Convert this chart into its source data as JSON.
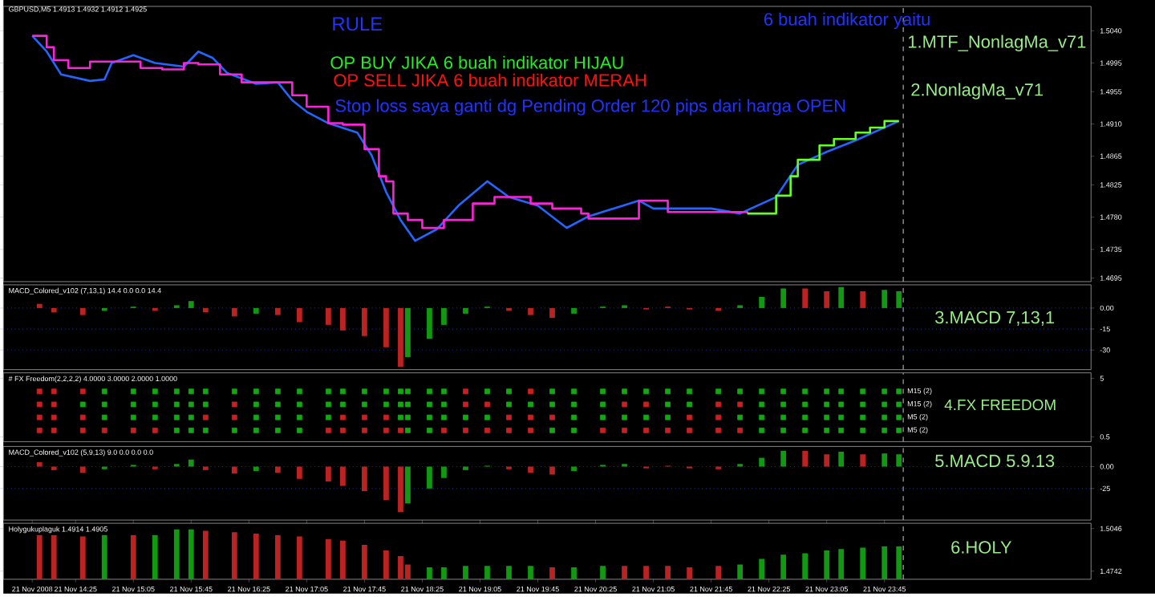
{
  "chart_data": [
    {
      "type": "line",
      "title": "GBPUSD,M5 1.4913 1.4932 1.4912 1.4925",
      "annotations": [
        "RULE",
        "OP BUY JIKA 6 buah indikator HIJAU",
        "OP SELL JIKA 6 buah indikator MERAH",
        "Stop loss saya ganti dg Pending Order 120 pips dari harga OPEN",
        "6 buah indikator yaitu",
        "1.MTF_NonlagMa_v71",
        "2.NonlagMa_v71"
      ],
      "xlim": [
        "2008-11-21T13:35",
        "2008-11-22T02:08"
      ],
      "ylim": [
        1.469,
        1.5074
      ],
      "yticks": [
        {
          "value": 1.504,
          "label": "1.5040"
        },
        {
          "value": 1.4995,
          "label": "1.4995"
        },
        {
          "value": 1.4955,
          "label": "1.4955"
        },
        {
          "value": 1.491,
          "label": "1.4910"
        },
        {
          "value": 1.4865,
          "label": "1.4865"
        },
        {
          "value": 1.4825,
          "label": "1.4825"
        },
        {
          "value": 1.478,
          "label": "1.4780"
        },
        {
          "value": 1.4735,
          "label": "1.4735"
        },
        {
          "value": 1.4695,
          "label": "1.4695"
        }
      ],
      "tick_labels": "y",
      "ref_lines": [
        {
          "axis": "x",
          "value": "2008-11-21T23:58",
          "color": "#cccccc",
          "line_style": "dashed"
        }
      ],
      "series": [
        {
          "type": "line",
          "color": "#2266ff",
          "x": [
            "2008-11-21T13:55",
            "2008-11-21T14:05",
            "2008-11-21T14:15",
            "2008-11-21T14:35",
            "2008-11-21T14:45",
            "2008-11-21T14:50",
            "2008-11-21T15:05",
            "2008-11-21T15:20",
            "2008-11-21T15:40",
            "2008-11-21T15:50",
            "2008-11-21T16:00",
            "2008-11-21T16:10",
            "2008-11-21T16:30",
            "2008-11-21T16:45",
            "2008-11-21T16:55",
            "2008-11-21T17:05",
            "2008-11-21T17:20",
            "2008-11-21T17:40",
            "2008-11-21T17:50",
            "2008-11-21T18:00",
            "2008-11-21T18:10",
            "2008-11-21T18:20",
            "2008-11-21T18:35",
            "2008-11-21T18:50",
            "2008-11-21T19:10",
            "2008-11-21T19:25",
            "2008-11-21T19:45",
            "2008-11-21T20:05",
            "2008-11-21T20:20",
            "2008-11-21T20:55",
            "2008-11-21T21:05",
            "2008-11-21T21:45",
            "2008-11-21T22:05",
            "2008-11-21T22:30",
            "2008-11-21T22:45",
            "2008-11-21T23:05",
            "2008-11-21T23:25",
            "2008-11-21T23:45",
            "2008-11-21T23:55"
          ],
          "values": [
            1.5033,
            1.5011,
            1.4979,
            1.497,
            1.4972,
            1.4995,
            1.5006,
            1.4995,
            1.499,
            1.5011,
            1.5002,
            1.4981,
            1.4966,
            1.4968,
            1.4943,
            1.4927,
            1.4911,
            1.4898,
            1.4866,
            1.4815,
            1.4776,
            1.4747,
            1.4763,
            1.4796,
            1.483,
            1.4808,
            1.4796,
            1.4765,
            1.4781,
            1.4803,
            1.4792,
            1.4792,
            1.4785,
            1.4808,
            1.4853,
            1.4871,
            1.4887,
            1.4905,
            1.4914
          ]
        },
        {
          "type": "step",
          "color": "#ff22dd",
          "x": [
            "2008-11-21T13:55",
            "2008-11-21T14:05",
            "2008-11-21T14:10",
            "2008-11-21T14:20",
            "2008-11-21T14:30",
            "2008-11-21T14:35",
            "2008-11-21T15:05",
            "2008-11-21T15:10",
            "2008-11-21T15:25",
            "2008-11-21T15:40",
            "2008-11-21T15:50",
            "2008-11-21T16:05",
            "2008-11-21T16:20",
            "2008-11-21T16:45",
            "2008-11-21T16:55",
            "2008-11-21T17:05",
            "2008-11-21T17:20",
            "2008-11-21T17:30",
            "2008-11-21T17:45",
            "2008-11-21T17:55",
            "2008-11-21T18:00",
            "2008-11-21T18:05",
            "2008-11-21T18:15",
            "2008-11-21T18:25",
            "2008-11-21T18:35",
            "2008-11-21T18:40",
            "2008-11-21T19:00",
            "2008-11-21T19:15",
            "2008-11-21T19:40",
            "2008-11-21T19:55",
            "2008-11-21T20:15",
            "2008-11-21T20:20",
            "2008-11-21T20:55",
            "2008-11-21T21:15",
            "2008-11-21T22:10"
          ],
          "values": [
            1.5033,
            1.5017,
            1.4999,
            1.4988,
            1.4988,
            1.4997,
            1.4997,
            1.4988,
            1.4986,
            1.4995,
            1.4993,
            1.4979,
            1.4968,
            1.4968,
            1.495,
            1.4934,
            1.4911,
            1.4909,
            1.4875,
            1.4837,
            1.483,
            1.4785,
            1.4776,
            1.4765,
            1.4765,
            1.4776,
            1.4799,
            1.4808,
            1.4799,
            1.4792,
            1.4785,
            1.4778,
            1.4803,
            1.4787,
            1.4785
          ]
        },
        {
          "type": "step",
          "color": "#66ff22",
          "x": [
            "2008-11-21T22:10",
            "2008-11-21T22:30",
            "2008-11-21T22:40",
            "2008-11-21T22:45",
            "2008-11-21T23:00",
            "2008-11-21T23:10",
            "2008-11-21T23:25",
            "2008-11-21T23:35",
            "2008-11-21T23:45",
            "2008-11-21T23:55"
          ],
          "values": [
            1.4785,
            1.481,
            1.4837,
            1.486,
            1.488,
            1.4889,
            1.4898,
            1.4905,
            1.4914,
            1.4914
          ]
        }
      ]
    },
    {
      "type": "bar",
      "title": "MACD_Colored_v102 (7,13,1) 14.4 0.0 0.0 14.4",
      "annotations": [
        "3.MACD 7,13,1"
      ],
      "x": [
        "2008-11-21T14:00",
        "2008-11-21T14:10",
        "2008-11-21T14:30",
        "2008-11-21T14:45",
        "2008-11-21T15:05",
        "2008-11-21T15:20",
        "2008-11-21T15:35",
        "2008-11-21T15:45",
        "2008-11-21T15:55",
        "2008-11-21T16:15",
        "2008-11-21T16:30",
        "2008-11-21T16:45",
        "2008-11-21T17:00",
        "2008-11-21T17:20",
        "2008-11-21T17:30",
        "2008-11-21T17:45",
        "2008-11-21T18:00",
        "2008-11-21T18:10",
        "2008-11-21T18:15",
        "2008-11-21T18:30",
        "2008-11-21T18:40",
        "2008-11-21T18:55",
        "2008-11-21T19:10",
        "2008-11-21T19:25",
        "2008-11-21T19:40",
        "2008-11-21T19:55",
        "2008-11-21T20:10",
        "2008-11-21T20:30",
        "2008-11-21T20:45",
        "2008-11-21T21:00",
        "2008-11-21T21:15",
        "2008-11-21T21:30",
        "2008-11-21T21:50",
        "2008-11-21T22:05",
        "2008-11-21T22:20",
        "2008-11-21T22:35",
        "2008-11-21T22:50",
        "2008-11-21T23:05",
        "2008-11-21T23:15",
        "2008-11-21T23:30",
        "2008-11-21T23:45",
        "2008-11-21T23:55"
      ],
      "values": [
        3,
        -3,
        -5,
        -2,
        1,
        -2,
        2,
        5,
        -3,
        -6,
        -4,
        -5,
        -10,
        -12,
        -16,
        -20,
        -28,
        -42,
        -35,
        -22,
        -12,
        -4,
        1,
        -2,
        -5,
        -7,
        -4,
        1,
        2,
        -1,
        1,
        -1,
        -2,
        2,
        8,
        14,
        14,
        12,
        15,
        12,
        13,
        12
      ],
      "colors": [
        "#bb2222",
        "#bb2222",
        "#bb2222",
        "#119911",
        "#119911",
        "#bb2222",
        "#119911",
        "#119911",
        "#bb2222",
        "#bb2222",
        "#119911",
        "#bb2222",
        "#bb2222",
        "#bb2222",
        "#bb2222",
        "#bb2222",
        "#bb2222",
        "#bb2222",
        "#119911",
        "#119911",
        "#119911",
        "#119911",
        "#119911",
        "#bb2222",
        "#bb2222",
        "#bb2222",
        "#119911",
        "#119911",
        "#119911",
        "#bb2222",
        "#bb2222",
        "#bb2222",
        "#bb2222",
        "#119911",
        "#119911",
        "#119911",
        "#bb2222",
        "#bb2222",
        "#119911",
        "#bb2222",
        "#119911",
        "#119911"
      ],
      "xlim": [
        "2008-11-21T13:35",
        "2008-11-22T02:08"
      ],
      "ylim": [
        -44,
        16.6
      ],
      "yticks": [
        {
          "value": 0,
          "label": "0.00"
        },
        -15,
        -30
      ],
      "grid": "y",
      "tick_labels": "y",
      "ref_lines": [
        {
          "axis": "x",
          "value": "2008-11-21T23:58",
          "color": "#cccccc",
          "line_style": "dashed"
        }
      ]
    },
    {
      "type": "scatter",
      "title": "# FX Freedom(2,2,2,2) 4.0000 3.0000 2.0000 1.0000",
      "annotations": [
        "4.FX FREEDOM"
      ],
      "marker": "square",
      "x": [
        "2008-11-21T14:00",
        "2008-11-21T14:10",
        "2008-11-21T14:30",
        "2008-11-21T14:45",
        "2008-11-21T15:05",
        "2008-11-21T15:20",
        "2008-11-21T15:35",
        "2008-11-21T15:45",
        "2008-11-21T15:55",
        "2008-11-21T16:15",
        "2008-11-21T16:30",
        "2008-11-21T16:45",
        "2008-11-21T17:00",
        "2008-11-21T17:20",
        "2008-11-21T17:30",
        "2008-11-21T17:45",
        "2008-11-21T18:00",
        "2008-11-21T18:10",
        "2008-11-21T18:15",
        "2008-11-21T18:30",
        "2008-11-21T18:40",
        "2008-11-21T18:55",
        "2008-11-21T19:10",
        "2008-11-21T19:25",
        "2008-11-21T19:40",
        "2008-11-21T19:55",
        "2008-11-21T20:10",
        "2008-11-21T20:30",
        "2008-11-21T20:45",
        "2008-11-21T21:00",
        "2008-11-21T21:15",
        "2008-11-21T21:30",
        "2008-11-21T21:50",
        "2008-11-21T22:05",
        "2008-11-21T22:20",
        "2008-11-21T22:35",
        "2008-11-21T22:50",
        "2008-11-21T23:05",
        "2008-11-21T23:15",
        "2008-11-21T23:30",
        "2008-11-21T23:45",
        "2008-11-21T23:55"
      ],
      "xlim": [
        "2008-11-21T13:35",
        "2008-11-22T02:08"
      ],
      "ylim": [
        0.13,
        5.43
      ],
      "yticks": [
        5,
        0.5
      ],
      "tick_labels": "y",
      "ref_lines": [
        {
          "axis": "x",
          "value": "2008-11-21T23:58",
          "color": "#cccccc",
          "line_style": "dashed"
        }
      ],
      "series": [
        {
          "name": "M15 (2)",
          "values": [
            4,
            4,
            4,
            4,
            4,
            4,
            4,
            4,
            4,
            4,
            4,
            4,
            4,
            4,
            4,
            4,
            4,
            4,
            4,
            4,
            4,
            4,
            4,
            4,
            4,
            4,
            4,
            4,
            4,
            4,
            4,
            4,
            4,
            4,
            4,
            4,
            4,
            4,
            4,
            4,
            4,
            4
          ],
          "colors": [
            "#cc2020",
            "#cc2020",
            "#cc2020",
            "#11aa11",
            "#11aa11",
            "#11aa11",
            "#11aa11",
            "#11aa11",
            "#11aa11",
            "#11aa11",
            "#11aa11",
            "#11aa11",
            "#11aa11",
            "#11aa11",
            "#11aa11",
            "#11aa11",
            "#11aa11",
            "#11aa11",
            "#11aa11",
            "#11aa11",
            "#11aa11",
            "#cc2020",
            "#11aa11",
            "#11aa11",
            "#cc2020",
            "#11aa11",
            "#11aa11",
            "#11aa11",
            "#11aa11",
            "#11aa11",
            "#11aa11",
            "#11aa11",
            "#11aa11",
            "#11aa11",
            "#11aa11",
            "#11aa11",
            "#11aa11",
            "#11aa11",
            "#11aa11",
            "#11aa11",
            "#11aa11",
            "#11aa11"
          ]
        },
        {
          "name": "M15 (2)",
          "values": [
            3,
            3,
            3,
            3,
            3,
            3,
            3,
            3,
            3,
            3,
            3,
            3,
            3,
            3,
            3,
            3,
            3,
            3,
            3,
            3,
            3,
            3,
            3,
            3,
            3,
            3,
            3,
            3,
            3,
            3,
            3,
            3,
            3,
            3,
            3,
            3,
            3,
            3,
            3,
            3,
            3,
            3
          ],
          "colors": [
            "#cc2020",
            "#cc2020",
            "#11aa11",
            "#11aa11",
            "#11aa11",
            "#11aa11",
            "#11aa11",
            "#11aa11",
            "#11aa11",
            "#cc2020",
            "#11aa11",
            "#11aa11",
            "#11aa11",
            "#11aa11",
            "#11aa11",
            "#11aa11",
            "#11aa11",
            "#11aa11",
            "#11aa11",
            "#11aa11",
            "#11aa11",
            "#cc2020",
            "#cc2020",
            "#11aa11",
            "#11aa11",
            "#11aa11",
            "#11aa11",
            "#11aa11",
            "#cc2020",
            "#cc2020",
            "#11aa11",
            "#11aa11",
            "#cc2020",
            "#cc2020",
            "#11aa11",
            "#11aa11",
            "#11aa11",
            "#11aa11",
            "#11aa11",
            "#11aa11",
            "#11aa11",
            "#11aa11"
          ]
        },
        {
          "name": "M5 (2)",
          "values": [
            2,
            2,
            2,
            2,
            2,
            2,
            2,
            2,
            2,
            2,
            2,
            2,
            2,
            2,
            2,
            2,
            2,
            2,
            2,
            2,
            2,
            2,
            2,
            2,
            2,
            2,
            2,
            2,
            2,
            2,
            2,
            2,
            2,
            2,
            2,
            2,
            2,
            2,
            2,
            2,
            2,
            2
          ],
          "colors": [
            "#cc2020",
            "#cc2020",
            "#cc2020",
            "#11aa11",
            "#11aa11",
            "#11aa11",
            "#11aa11",
            "#11aa11",
            "#cc2020",
            "#cc2020",
            "#11aa11",
            "#11aa11",
            "#11aa11",
            "#11aa11",
            "#cc2020",
            "#cc2020",
            "#cc2020",
            "#11aa11",
            "#11aa11",
            "#11aa11",
            "#11aa11",
            "#11aa11",
            "#11aa11",
            "#cc2020",
            "#cc2020",
            "#cc2020",
            "#11aa11",
            "#11aa11",
            "#11aa11",
            "#11aa11",
            "#11aa11",
            "#cc2020",
            "#cc2020",
            "#11aa11",
            "#11aa11",
            "#11aa11",
            "#11aa11",
            "#11aa11",
            "#11aa11",
            "#11aa11",
            "#11aa11",
            "#11aa11"
          ]
        },
        {
          "name": "M5 (2)",
          "values": [
            1,
            1,
            1,
            1,
            1,
            1,
            1,
            1,
            1,
            1,
            1,
            1,
            1,
            1,
            1,
            1,
            1,
            1,
            1,
            1,
            1,
            1,
            1,
            1,
            1,
            1,
            1,
            1,
            1,
            1,
            1,
            1,
            1,
            1,
            1,
            1,
            1,
            1,
            1,
            1,
            1,
            1
          ],
          "colors": [
            "#cc2020",
            "#cc2020",
            "#cc2020",
            "#cc2020",
            "#cc2020",
            "#cc2020",
            "#11aa11",
            "#11aa11",
            "#11aa11",
            "#11aa11",
            "#11aa11",
            "#11aa11",
            "#11aa11",
            "#cc2020",
            "#cc2020",
            "#cc2020",
            "#cc2020",
            "#cc2020",
            "#11aa11",
            "#11aa11",
            "#cc2020",
            "#cc2020",
            "#cc2020",
            "#cc2020",
            "#cc2020",
            "#11aa11",
            "#11aa11",
            "#cc2020",
            "#cc2020",
            "#cc2020",
            "#cc2020",
            "#cc2020",
            "#cc2020",
            "#cc2020",
            "#11aa11",
            "#11aa11",
            "#11aa11",
            "#11aa11",
            "#11aa11",
            "#11aa11",
            "#11aa11",
            "#11aa11"
          ]
        }
      ]
    },
    {
      "type": "bar",
      "title": "MACD_Colored_v102 (5,9,13) 9.0 0.0 0.0 0.0",
      "annotations": [
        "5.MACD 5.9.13"
      ],
      "x": [
        "2008-11-21T14:00",
        "2008-11-21T14:10",
        "2008-11-21T14:30",
        "2008-11-21T14:45",
        "2008-11-21T15:05",
        "2008-11-21T15:20",
        "2008-11-21T15:35",
        "2008-11-21T15:45",
        "2008-11-21T15:55",
        "2008-11-21T16:15",
        "2008-11-21T16:30",
        "2008-11-21T16:45",
        "2008-11-21T17:00",
        "2008-11-21T17:20",
        "2008-11-21T17:30",
        "2008-11-21T17:45",
        "2008-11-21T18:00",
        "2008-11-21T18:10",
        "2008-11-21T18:15",
        "2008-11-21T18:30",
        "2008-11-21T18:40",
        "2008-11-21T18:55",
        "2008-11-21T19:10",
        "2008-11-21T19:25",
        "2008-11-21T19:40",
        "2008-11-21T19:55",
        "2008-11-21T20:10",
        "2008-11-21T20:30",
        "2008-11-21T20:45",
        "2008-11-21T21:00",
        "2008-11-21T21:15",
        "2008-11-21T21:30",
        "2008-11-21T21:50",
        "2008-11-21T22:05",
        "2008-11-21T22:20",
        "2008-11-21T22:35",
        "2008-11-21T22:50",
        "2008-11-21T23:05",
        "2008-11-21T23:15",
        "2008-11-21T23:30",
        "2008-11-21T23:45",
        "2008-11-21T23:55"
      ],
      "values": [
        5,
        -4,
        -7,
        -3,
        2,
        -3,
        3,
        8,
        -4,
        -8,
        -5,
        -7,
        -14,
        -17,
        -22,
        -28,
        -38,
        -52,
        -42,
        -25,
        -13,
        -4,
        1,
        -3,
        -7,
        -9,
        -5,
        2,
        3,
        -2,
        1,
        -2,
        -3,
        3,
        10,
        18,
        18,
        14,
        17,
        14,
        15,
        14
      ],
      "colors": [
        "#bb2222",
        "#bb2222",
        "#bb2222",
        "#119911",
        "#119911",
        "#bb2222",
        "#119911",
        "#119911",
        "#bb2222",
        "#bb2222",
        "#119911",
        "#bb2222",
        "#bb2222",
        "#bb2222",
        "#bb2222",
        "#bb2222",
        "#bb2222",
        "#bb2222",
        "#119911",
        "#119911",
        "#119911",
        "#119911",
        "#119911",
        "#bb2222",
        "#bb2222",
        "#bb2222",
        "#119911",
        "#119911",
        "#119911",
        "#bb2222",
        "#bb2222",
        "#bb2222",
        "#bb2222",
        "#119911",
        "#119911",
        "#119911",
        "#bb2222",
        "#bb2222",
        "#119911",
        "#bb2222",
        "#119911",
        "#119911"
      ],
      "xlim": [
        "2008-11-21T13:35",
        "2008-11-22T02:08"
      ],
      "ylim": [
        -61,
        23
      ],
      "yticks": [
        {
          "value": 0,
          "label": "0.00"
        },
        -25
      ],
      "grid": "y",
      "tick_labels": "y",
      "ref_lines": [
        {
          "axis": "x",
          "value": "2008-11-21T23:58",
          "color": "#cccccc",
          "line_style": "dashed"
        }
      ]
    },
    {
      "type": "bar",
      "title": "Holygukuplaguk 1.4914 1.4905",
      "annotations": [
        "6.HOLY"
      ],
      "x": [
        "2008-11-21T14:00",
        "2008-11-21T14:10",
        "2008-11-21T14:30",
        "2008-11-21T14:45",
        "2008-11-21T15:05",
        "2008-11-21T15:20",
        "2008-11-21T15:35",
        "2008-11-21T15:45",
        "2008-11-21T15:55",
        "2008-11-21T16:15",
        "2008-11-21T16:30",
        "2008-11-21T16:45",
        "2008-11-21T17:00",
        "2008-11-21T17:20",
        "2008-11-21T17:30",
        "2008-11-21T17:45",
        "2008-11-21T18:00",
        "2008-11-21T18:10",
        "2008-11-21T18:15",
        "2008-11-21T18:30",
        "2008-11-21T18:40",
        "2008-11-21T18:55",
        "2008-11-21T19:10",
        "2008-11-21T19:25",
        "2008-11-21T19:40",
        "2008-11-21T19:55",
        "2008-11-21T20:10",
        "2008-11-21T20:30",
        "2008-11-21T20:45",
        "2008-11-21T21:00",
        "2008-11-21T21:15",
        "2008-11-21T21:30",
        "2008-11-21T21:50",
        "2008-11-21T22:05",
        "2008-11-21T22:20",
        "2008-11-21T22:35",
        "2008-11-21T22:50",
        "2008-11-21T23:05",
        "2008-11-21T23:15",
        "2008-11-21T23:30",
        "2008-11-21T23:45",
        "2008-11-21T23:55"
      ],
      "values": [
        1.5,
        1.5,
        1.499,
        1.5,
        1.5,
        1.5,
        1.504,
        1.504,
        1.503,
        1.502,
        1.501,
        1.5,
        1.499,
        1.497,
        1.496,
        1.493,
        1.489,
        1.485,
        1.479,
        1.477,
        1.477,
        1.478,
        1.478,
        1.478,
        1.478,
        1.477,
        1.477,
        1.478,
        1.478,
        1.478,
        1.478,
        1.477,
        1.478,
        1.479,
        1.483,
        1.486,
        1.487,
        1.489,
        1.49,
        1.491,
        1.492,
        1.492
      ],
      "colors": [
        "#bb2222",
        "#bb2222",
        "#bb2222",
        "#119911",
        "#bb2222",
        "#119911",
        "#119911",
        "#119911",
        "#bb2222",
        "#bb2222",
        "#bb2222",
        "#bb2222",
        "#bb2222",
        "#bb2222",
        "#bb2222",
        "#bb2222",
        "#bb2222",
        "#bb2222",
        "#bb2222",
        "#119911",
        "#119911",
        "#119911",
        "#119911",
        "#119911",
        "#119911",
        "#bb2222",
        "#119911",
        "#119911",
        "#bb2222",
        "#bb2222",
        "#bb2222",
        "#bb2222",
        "#bb2222",
        "#119911",
        "#119911",
        "#119911",
        "#119911",
        "#119911",
        "#119911",
        "#119911",
        "#119911",
        "#119911"
      ],
      "xlim": [
        "2008-11-21T13:35",
        "2008-11-22T02:08"
      ],
      "ylim": [
        1.4684,
        1.5084
      ],
      "yticks": [
        {
          "value": 1.5046,
          "label": "1.5046"
        },
        {
          "value": 1.4742,
          "label": "1.4742"
        }
      ],
      "xticks": [
        {
          "value": "2008-11-21T13:55",
          "label": "21 Nov 2008"
        },
        {
          "value": "2008-11-21T14:25",
          "label": "21 Nov 14:25"
        },
        {
          "value": "2008-11-21T15:05",
          "label": "21 Nov 15:05"
        },
        {
          "value": "2008-11-21T15:45",
          "label": "21 Nov 15:45"
        },
        {
          "value": "2008-11-21T16:25",
          "label": "21 Nov 16:25"
        },
        {
          "value": "2008-11-21T17:05",
          "label": "21 Nov 17:05"
        },
        {
          "value": "2008-11-21T17:45",
          "label": "21 Nov 17:45"
        },
        {
          "value": "2008-11-21T18:25",
          "label": "21 Nov 18:25"
        },
        {
          "value": "2008-11-21T19:05",
          "label": "21 Nov 19:05"
        },
        {
          "value": "2008-11-21T19:45",
          "label": "21 Nov 19:45"
        },
        {
          "value": "2008-11-21T20:25",
          "label": "21 Nov 20:25"
        },
        {
          "value": "2008-11-21T21:05",
          "label": "21 Nov 21:05"
        },
        {
          "value": "2008-11-21T21:45",
          "label": "21 Nov 21:45"
        },
        {
          "value": "2008-11-21T22:25",
          "label": "21 Nov 22:25"
        },
        {
          "value": "2008-11-21T23:05",
          "label": "21 Nov 23:05"
        },
        {
          "value": "2008-11-21T23:45",
          "label": "21 Nov 23:45"
        }
      ],
      "ref_lines": [
        {
          "axis": "x",
          "value": "2008-11-21T23:58",
          "color": "#cccccc",
          "line_style": "dashed"
        }
      ]
    }
  ]
}
